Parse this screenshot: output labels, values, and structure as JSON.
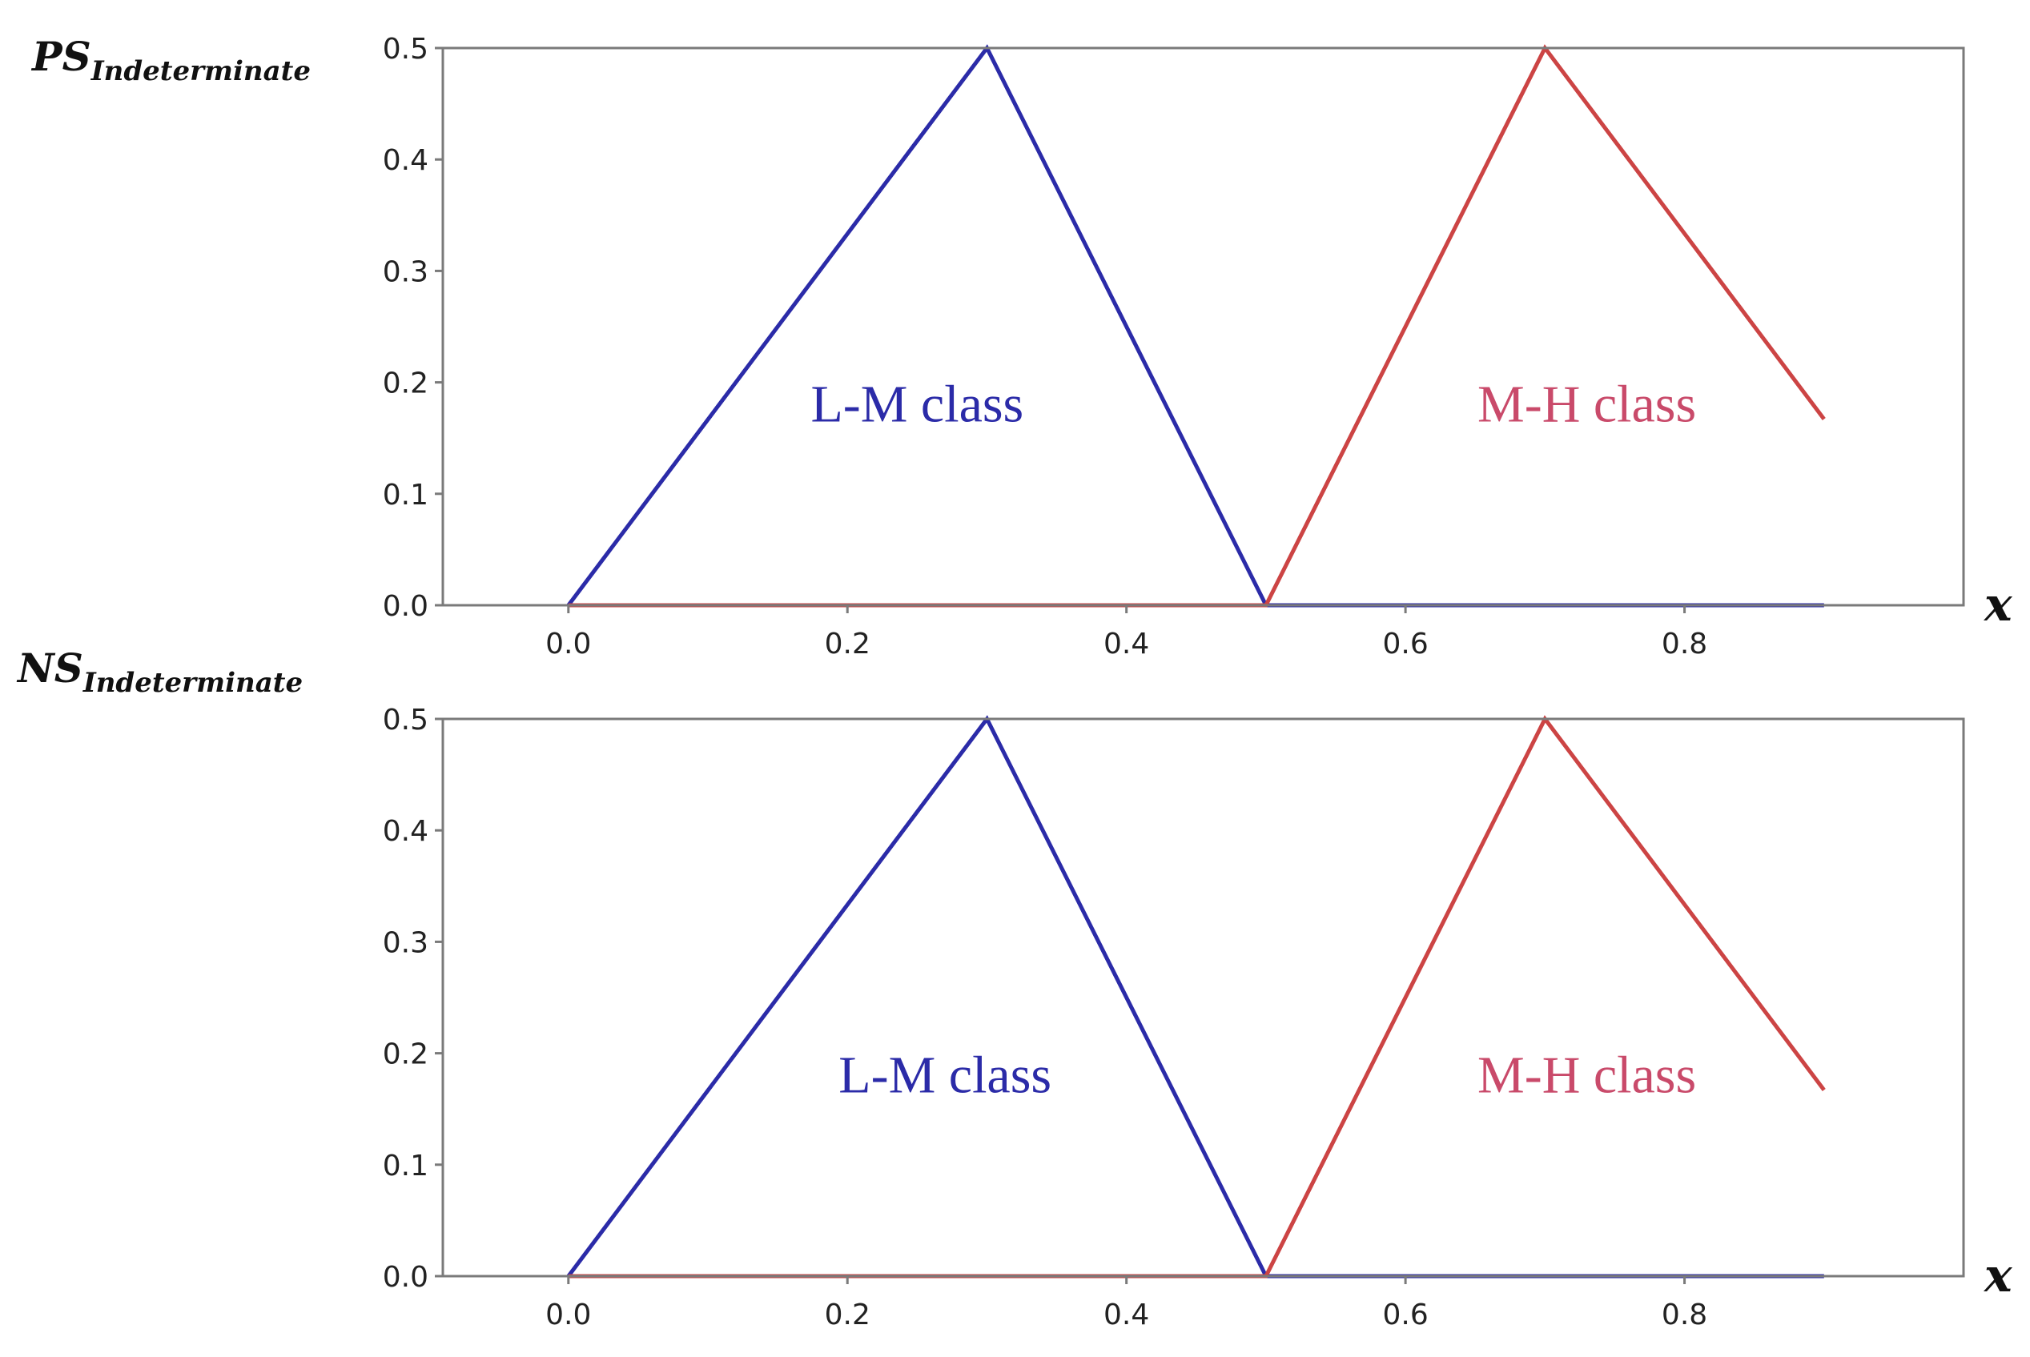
{
  "colors": {
    "lm": "#2b2ba8",
    "mh": "#cc4444",
    "mh_text": "#c94a6a"
  },
  "chart_data": [
    {
      "type": "line",
      "ylabel_main": "PS",
      "ylabel_sub": "Indeterminate",
      "xlabel": "x",
      "xlim": [
        -0.09,
        1.0
      ],
      "ylim": [
        0.0,
        0.5
      ],
      "xticks": [
        0.0,
        0.2,
        0.4,
        0.6,
        0.8
      ],
      "xtick_labels": [
        "0.0",
        "0.2",
        "0.4",
        "0.6",
        "0.8"
      ],
      "yticks": [
        0.0,
        0.1,
        0.2,
        0.3,
        0.4,
        0.5
      ],
      "ytick_labels": [
        "0.0",
        "0.1",
        "0.2",
        "0.3",
        "0.4",
        "0.5"
      ],
      "grid": false,
      "series": [
        {
          "color": "#2b2ba8",
          "x": [
            0.0,
            0.3,
            0.5,
            0.9
          ],
          "y": [
            0.0,
            0.5,
            0.0,
            0.0
          ]
        },
        {
          "color": "#cc4444",
          "x": [
            0.0,
            0.5,
            0.7,
            0.9
          ],
          "y": [
            0.0,
            0.0,
            0.5,
            0.167
          ]
        }
      ],
      "annotations": [
        {
          "text": "L-M class",
          "x": 0.25,
          "y": 0.165,
          "color": "#2b2ba8"
        },
        {
          "text": "M-H class",
          "x": 0.73,
          "y": 0.165,
          "color": "#c94a6a"
        }
      ]
    },
    {
      "type": "line",
      "ylabel_main": "NS",
      "ylabel_sub": "Indeterminate",
      "xlabel": "x",
      "xlim": [
        -0.09,
        1.0
      ],
      "ylim": [
        0.0,
        0.5
      ],
      "xticks": [
        0.0,
        0.2,
        0.4,
        0.6,
        0.8
      ],
      "xtick_labels": [
        "0.0",
        "0.2",
        "0.4",
        "0.6",
        "0.8"
      ],
      "yticks": [
        0.0,
        0.1,
        0.2,
        0.3,
        0.4,
        0.5
      ],
      "ytick_labels": [
        "0.0",
        "0.1",
        "0.2",
        "0.3",
        "0.4",
        "0.5"
      ],
      "grid": false,
      "series": [
        {
          "color": "#2b2ba8",
          "x": [
            0.0,
            0.3,
            0.5,
            0.9
          ],
          "y": [
            0.0,
            0.5,
            0.0,
            0.0
          ]
        },
        {
          "color": "#cc4444",
          "x": [
            0.0,
            0.5,
            0.7,
            0.9
          ],
          "y": [
            0.0,
            0.0,
            0.5,
            0.167
          ]
        }
      ],
      "annotations": [
        {
          "text": "L-M class",
          "x": 0.27,
          "y": 0.165,
          "color": "#2b2ba8"
        },
        {
          "text": "M-H class",
          "x": 0.73,
          "y": 0.165,
          "color": "#c94a6a"
        }
      ]
    }
  ]
}
